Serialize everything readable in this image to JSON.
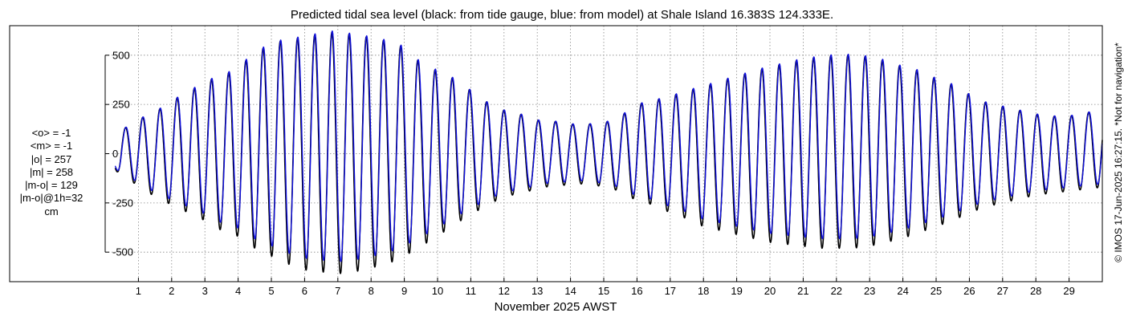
{
  "title": "Predicted tidal sea level (black: from tide gauge, blue: from model) at Shale Island 16.383S 124.333E.",
  "xlabel": "November 2025 AWST",
  "copyright": "© IMOS 17-Jun-2025 16:27:15. *Not for navigation*",
  "stats": [
    "<o> = -1",
    "<m> = -1",
    "|o| = 257",
    "|m| = 258",
    "|m-o| = 129",
    "|m-o|@1h=32",
    "cm"
  ],
  "colors": {
    "observed": "#000000",
    "model": "#1010dd",
    "grid": "#888888",
    "axis": "#000000"
  },
  "chart_data": {
    "type": "line",
    "x_unit": "day of November 2025",
    "xlim": [
      0,
      30
    ],
    "ylim": [
      -650,
      650
    ],
    "xticks": [
      1,
      2,
      3,
      4,
      5,
      6,
      7,
      8,
      9,
      10,
      11,
      12,
      13,
      14,
      15,
      16,
      17,
      18,
      19,
      20,
      21,
      22,
      23,
      24,
      25,
      26,
      27,
      28,
      29
    ],
    "xtick_labels": [
      "1",
      "2",
      "3",
      "4",
      "5",
      "6",
      "7",
      "8",
      "9",
      "10",
      "11",
      "12",
      "13",
      "14",
      "15",
      "16",
      "17",
      "18",
      "19",
      "20",
      "21",
      "22",
      "23",
      "24",
      "25",
      "26",
      "27",
      "28",
      "29"
    ],
    "yticks": [
      -500,
      -250,
      0,
      250,
      500
    ],
    "ytick_labels": [
      "-500",
      "-250",
      "0",
      "250",
      "500"
    ],
    "grid": true,
    "period_days": 0.5175,
    "phase_day": 0.61,
    "envelope": {
      "day": [
        0.2,
        0.5,
        1,
        1.5,
        2,
        2.5,
        3,
        3.5,
        4,
        4.5,
        5,
        5.5,
        6,
        6.5,
        7,
        7.5,
        8,
        8.5,
        9,
        9.5,
        10,
        10.5,
        11,
        11.5,
        12,
        12.5,
        13,
        13.5,
        14,
        14.5,
        15,
        15.5,
        16,
        16.5,
        17,
        17.5,
        18,
        18.5,
        19,
        19.5,
        20,
        20.5,
        21,
        21.5,
        22,
        22.5,
        23,
        23.5,
        24,
        24.5,
        25,
        25.5,
        26,
        26.5,
        27,
        27.5,
        28,
        28.5,
        29,
        29.5,
        30
      ],
      "high": [
        -60,
        120,
        175,
        210,
        270,
        310,
        370,
        390,
        440,
        510,
        560,
        580,
        590,
        610,
        620,
        600,
        590,
        570,
        540,
        460,
        420,
        380,
        320,
        260,
        220,
        200,
        170,
        165,
        150,
        150,
        155,
        190,
        250,
        270,
        290,
        320,
        340,
        370,
        390,
        420,
        440,
        460,
        480,
        490,
        500,
        500,
        490,
        470,
        440,
        420,
        380,
        350,
        300,
        260,
        240,
        220,
        200,
        190,
        190,
        210,
        210
      ],
      "low": [
        -60,
        -120,
        -160,
        -220,
        -260,
        -300,
        -340,
        -390,
        -420,
        -480,
        -520,
        -560,
        -590,
        -600,
        -610,
        -600,
        -580,
        -560,
        -520,
        -470,
        -420,
        -360,
        -310,
        -260,
        -220,
        -200,
        -180,
        -160,
        -160,
        -150,
        -170,
        -190,
        -240,
        -260,
        -300,
        -330,
        -370,
        -390,
        -410,
        -430,
        -450,
        -460,
        -470,
        -480,
        -480,
        -480,
        -470,
        -450,
        -430,
        -400,
        -370,
        -340,
        -300,
        -270,
        -250,
        -230,
        -210,
        -200,
        -190,
        -180,
        -170
      ]
    },
    "series": [
      {
        "name": "from tide gauge",
        "color": "#000000",
        "high_scale": 1.0,
        "low_scale": 1.0,
        "lag_days": 0
      },
      {
        "name": "from model",
        "color": "#1010dd",
        "high_scale": 1.01,
        "low_scale": 0.9,
        "lag_days": 0.012
      }
    ]
  }
}
